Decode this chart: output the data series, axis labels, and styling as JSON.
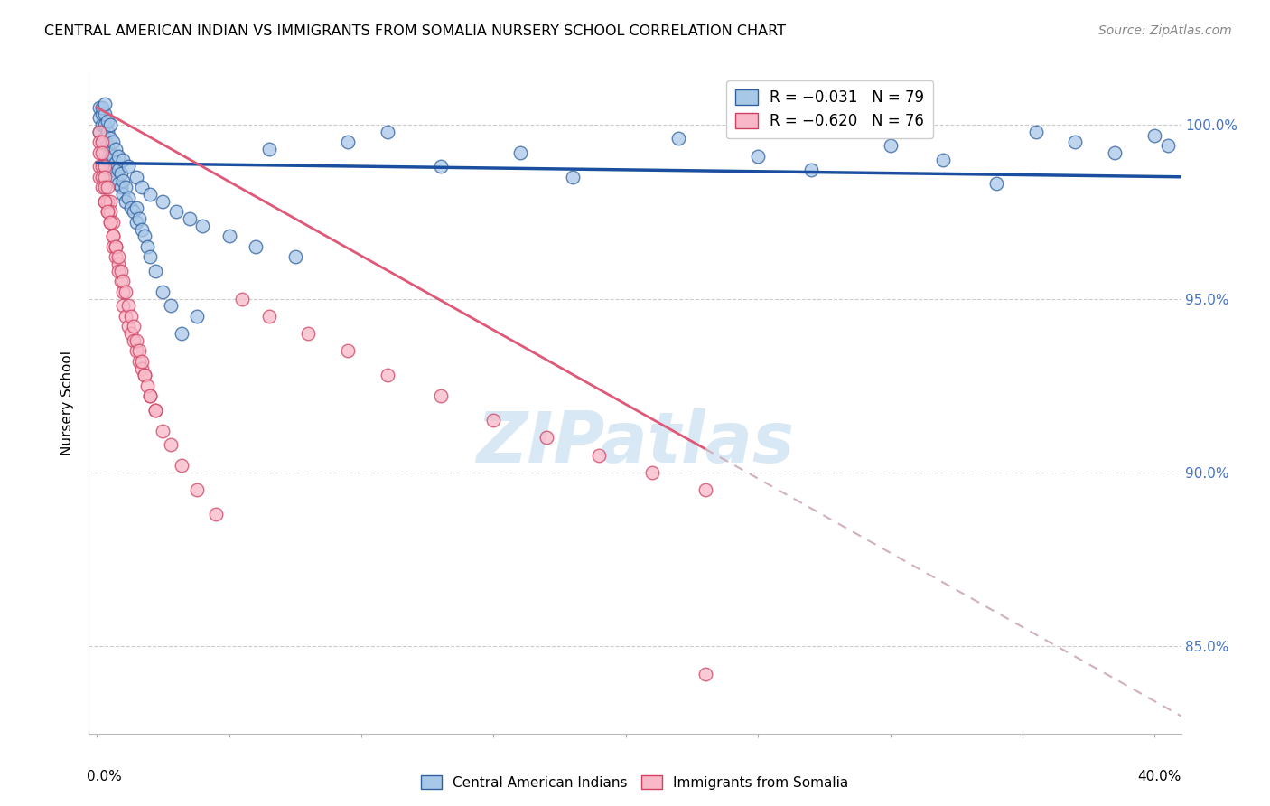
{
  "title": "CENTRAL AMERICAN INDIAN VS IMMIGRANTS FROM SOMALIA NURSERY SCHOOL CORRELATION CHART",
  "source": "Source: ZipAtlas.com",
  "ylabel": "Nursery School",
  "ylim": [
    82.5,
    101.5
  ],
  "xlim": [
    -0.003,
    0.41
  ],
  "ytick_vals": [
    85.0,
    90.0,
    95.0,
    100.0
  ],
  "ytick_labels": [
    "85.0%",
    "90.0%",
    "95.0%",
    "100.0%"
  ],
  "legend_blue_label": "R = −0.031   N = 79",
  "legend_pink_label": "R = −0.620   N = 76",
  "scatter_blue_color": "#a8c8e8",
  "scatter_blue_edge": "#3060a0",
  "scatter_pink_color": "#f8b8c8",
  "scatter_pink_edge": "#d04060",
  "trend_blue_color": "#1a4fa0",
  "trend_pink_solid_color": "#e05878",
  "trend_pink_dash_color": "#d0b0bc",
  "watermark_color": "#d8e8f4",
  "grid_color": "#cccccc",
  "right_axis_color": "#4472c4",
  "blue_x": [
    0.001,
    0.001,
    0.001,
    0.002,
    0.002,
    0.002,
    0.002,
    0.003,
    0.003,
    0.003,
    0.003,
    0.003,
    0.004,
    0.004,
    0.004,
    0.004,
    0.005,
    0.005,
    0.005,
    0.005,
    0.006,
    0.006,
    0.006,
    0.007,
    0.007,
    0.007,
    0.008,
    0.008,
    0.008,
    0.009,
    0.009,
    0.01,
    0.01,
    0.011,
    0.011,
    0.012,
    0.013,
    0.014,
    0.015,
    0.015,
    0.016,
    0.017,
    0.018,
    0.019,
    0.02,
    0.022,
    0.025,
    0.028,
    0.032,
    0.038,
    0.065,
    0.095,
    0.11,
    0.13,
    0.16,
    0.18,
    0.22,
    0.25,
    0.27,
    0.3,
    0.32,
    0.34,
    0.355,
    0.37,
    0.385,
    0.4,
    0.405,
    0.01,
    0.012,
    0.015,
    0.017,
    0.02,
    0.025,
    0.03,
    0.035,
    0.04,
    0.05,
    0.06,
    0.075
  ],
  "blue_y": [
    99.8,
    100.2,
    100.5,
    99.5,
    100.0,
    100.3,
    100.5,
    99.2,
    99.6,
    100.0,
    100.3,
    100.6,
    99.0,
    99.4,
    99.8,
    100.1,
    98.8,
    99.2,
    99.6,
    100.0,
    98.7,
    99.1,
    99.5,
    98.5,
    98.9,
    99.3,
    98.3,
    98.7,
    99.1,
    98.2,
    98.6,
    98.0,
    98.4,
    97.8,
    98.2,
    97.9,
    97.6,
    97.5,
    97.2,
    97.6,
    97.3,
    97.0,
    96.8,
    96.5,
    96.2,
    95.8,
    95.2,
    94.8,
    94.0,
    94.5,
    99.3,
    99.5,
    99.8,
    98.8,
    99.2,
    98.5,
    99.6,
    99.1,
    98.7,
    99.4,
    99.0,
    98.3,
    99.8,
    99.5,
    99.2,
    99.7,
    99.4,
    99.0,
    98.8,
    98.5,
    98.2,
    98.0,
    97.8,
    97.5,
    97.3,
    97.1,
    96.8,
    96.5,
    96.2
  ],
  "pink_x": [
    0.001,
    0.001,
    0.001,
    0.001,
    0.001,
    0.002,
    0.002,
    0.002,
    0.002,
    0.002,
    0.003,
    0.003,
    0.003,
    0.003,
    0.004,
    0.004,
    0.004,
    0.005,
    0.005,
    0.005,
    0.006,
    0.006,
    0.006,
    0.007,
    0.007,
    0.008,
    0.008,
    0.009,
    0.01,
    0.01,
    0.011,
    0.012,
    0.013,
    0.014,
    0.015,
    0.016,
    0.017,
    0.018,
    0.02,
    0.022,
    0.025,
    0.028,
    0.032,
    0.038,
    0.045,
    0.055,
    0.065,
    0.08,
    0.095,
    0.11,
    0.13,
    0.15,
    0.17,
    0.19,
    0.21,
    0.23,
    0.003,
    0.004,
    0.005,
    0.006,
    0.007,
    0.008,
    0.009,
    0.01,
    0.011,
    0.012,
    0.013,
    0.014,
    0.015,
    0.016,
    0.017,
    0.018,
    0.019,
    0.02,
    0.022,
    0.23
  ],
  "pink_y": [
    99.8,
    99.5,
    99.2,
    98.8,
    98.5,
    99.5,
    99.2,
    98.8,
    98.5,
    98.2,
    98.8,
    98.5,
    98.2,
    97.8,
    98.2,
    97.8,
    97.5,
    97.8,
    97.5,
    97.2,
    97.2,
    96.8,
    96.5,
    96.5,
    96.2,
    96.0,
    95.8,
    95.5,
    95.2,
    94.8,
    94.5,
    94.2,
    94.0,
    93.8,
    93.5,
    93.2,
    93.0,
    92.8,
    92.2,
    91.8,
    91.2,
    90.8,
    90.2,
    89.5,
    88.8,
    95.0,
    94.5,
    94.0,
    93.5,
    92.8,
    92.2,
    91.5,
    91.0,
    90.5,
    90.0,
    89.5,
    97.8,
    97.5,
    97.2,
    96.8,
    96.5,
    96.2,
    95.8,
    95.5,
    95.2,
    94.8,
    94.5,
    94.2,
    93.8,
    93.5,
    93.2,
    92.8,
    92.5,
    92.2,
    91.8,
    84.2
  ],
  "trend_blue_x0": 0.0,
  "trend_blue_x1": 0.41,
  "trend_blue_y0": 98.9,
  "trend_blue_y1": 98.5,
  "trend_pink_x0": 0.0,
  "trend_pink_x1": 0.41,
  "trend_pink_y0": 100.5,
  "trend_pink_y1": 83.0,
  "trend_pink_solid_end_x": 0.23,
  "bottom_legend_labels": [
    "Central American Indians",
    "Immigrants from Somalia"
  ]
}
